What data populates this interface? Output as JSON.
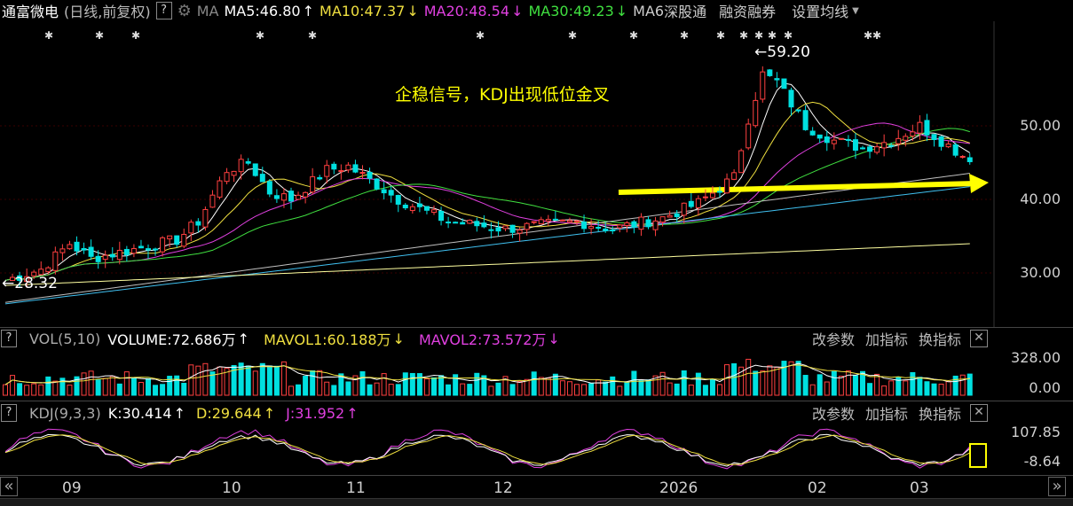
{
  "header": {
    "stock_name": "通富微电",
    "mode": "(日线,前复权)",
    "help": "?",
    "ma_label": "MA",
    "ma5": "MA5:46.80",
    "ma10": "MA10:47.37",
    "ma20": "MA20:48.54",
    "ma30": "MA30:49.23",
    "ma6": "MA6",
    "tab_shenzhen": "深股通",
    "tab_margin": "融资融券",
    "tab_settings": "设置均线",
    "arrow_up": "↑",
    "arrow_down": "↓"
  },
  "colors": {
    "ma5": "#ffffff",
    "ma10": "#f0e040",
    "ma20": "#e040e0",
    "ma30": "#40e040",
    "ma60": "#c0c0c0",
    "ma120": "#40c0f0",
    "ma250": "#ffffa0",
    "up": "#ff4040",
    "down": "#00e0e0",
    "annotation": "#ffff00"
  },
  "main_chart": {
    "annotation": "企稳信号，KDJ出现低位金叉",
    "high_label": "59.20",
    "low_label": "28.32",
    "y_ticks": [
      "50.00",
      "40.00",
      "30.00"
    ]
  },
  "volume_panel": {
    "help": "?",
    "name": "VOL(5,10)",
    "volume": "VOLUME:72.686万",
    "mavol1": "MAVOL1:60.188万",
    "mavol2": "MAVOL2:73.572万",
    "btn_params": "改参数",
    "btn_add": "加指标",
    "btn_switch": "换指标",
    "close": "✕",
    "y_ticks": [
      "328.00",
      "0.00"
    ]
  },
  "kdj_panel": {
    "help": "?",
    "name": "KDJ(9,3,3)",
    "k": "K:30.414",
    "d": "D:29.644",
    "j": "J:31.952",
    "btn_params": "改参数",
    "btn_add": "加指标",
    "btn_switch": "换指标",
    "close": "✕",
    "y_ticks": [
      "107.85",
      "-8.64"
    ]
  },
  "x_axis": {
    "months": [
      "09",
      "10",
      "11",
      "12",
      "2026",
      "02",
      "03"
    ],
    "left_nav": "«",
    "right_nav": "»"
  }
}
